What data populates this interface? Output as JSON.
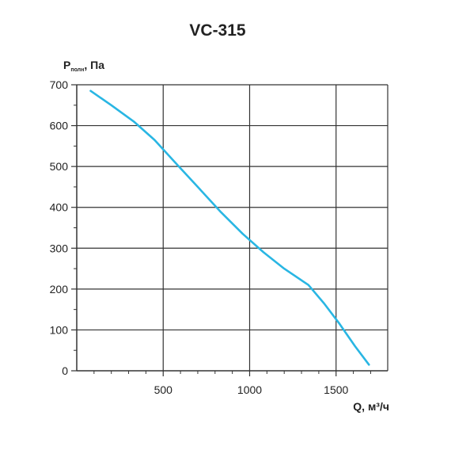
{
  "chart_data": {
    "type": "line",
    "title": "VC-315",
    "xlabel": "Q, м³/ч",
    "ylabel": {
      "main": "P",
      "subscript": "полн",
      "suffix": ", Па"
    },
    "xlim": [
      0,
      1750
    ],
    "ylim": [
      0,
      700
    ],
    "x_ticks": [
      500,
      1000,
      1500
    ],
    "y_ticks": [
      0,
      100,
      200,
      300,
      400,
      500,
      600,
      700
    ],
    "grid": true,
    "series": [
      {
        "color": "#29b6e3",
        "x": [
          80,
          200,
          330,
          450,
          580,
          700,
          830,
          960,
          1080,
          1200,
          1340,
          1430,
          1520,
          1610,
          1690
        ],
        "y": [
          685,
          650,
          610,
          565,
          505,
          450,
          390,
          335,
          290,
          250,
          210,
          165,
          115,
          60,
          15
        ]
      }
    ]
  }
}
